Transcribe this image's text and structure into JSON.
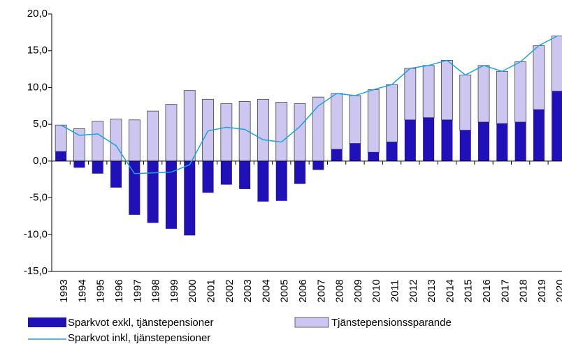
{
  "chart_data": {
    "type": "bar",
    "categories": [
      "1993",
      "1994",
      "1995",
      "1996",
      "1997",
      "1998",
      "1999",
      "2000",
      "2001",
      "2002",
      "2003",
      "2004",
      "2005",
      "2006",
      "2007",
      "2008",
      "2009",
      "2010",
      "2011",
      "2012",
      "2013",
      "2014",
      "2015",
      "2016",
      "2017",
      "2018",
      "2019",
      "2020"
    ],
    "series": [
      {
        "name": "Sparkvot exkl, tjänstepensioner",
        "color": "#2010b8",
        "kind": "bar",
        "values": [
          1.3,
          -0.9,
          -1.7,
          -3.6,
          -7.3,
          -8.4,
          -9.2,
          -10.1,
          -4.3,
          -3.2,
          -3.8,
          -5.5,
          -5.4,
          -3.1,
          -1.2,
          1.6,
          2.4,
          1.2,
          2.6,
          5.6,
          5.9,
          5.6,
          4.2,
          5.3,
          5.1,
          5.3,
          7.0,
          9.5
        ]
      },
      {
        "name": "Tjänstepensionssparande",
        "color": "#cdc6f0",
        "kind": "bar",
        "values": [
          3.6,
          4.4,
          5.4,
          5.7,
          5.6,
          6.8,
          7.7,
          9.6,
          8.4,
          7.8,
          8.1,
          8.4,
          8.0,
          7.8,
          8.7,
          7.6,
          6.5,
          8.5,
          7.8,
          7.0,
          7.1,
          8.1,
          7.5,
          7.7,
          7.1,
          8.2,
          8.7,
          7.5
        ]
      },
      {
        "name": "Sparkvot inkl, tjänstepensioner",
        "color": "#1aa3e0",
        "kind": "line",
        "values": [
          4.9,
          3.5,
          3.7,
          2.1,
          -1.7,
          -1.6,
          -1.5,
          -0.5,
          4.1,
          4.6,
          4.3,
          2.9,
          2.6,
          4.7,
          7.5,
          9.2,
          8.9,
          9.7,
          10.4,
          12.6,
          13.0,
          13.7,
          11.7,
          13.0,
          12.2,
          13.5,
          15.7,
          17.0
        ]
      }
    ],
    "ylim": [
      -15,
      20
    ],
    "yticks": [
      {
        "value": -15,
        "label": "-15,0"
      },
      {
        "value": -10,
        "label": "-10,0"
      },
      {
        "value": -5,
        "label": "-5,0"
      },
      {
        "value": 0,
        "label": "0,0"
      },
      {
        "value": 5,
        "label": "5,0"
      },
      {
        "value": 10,
        "label": "10,0"
      },
      {
        "value": 15,
        "label": "15,0"
      },
      {
        "value": 20,
        "label": "20,0"
      }
    ]
  }
}
